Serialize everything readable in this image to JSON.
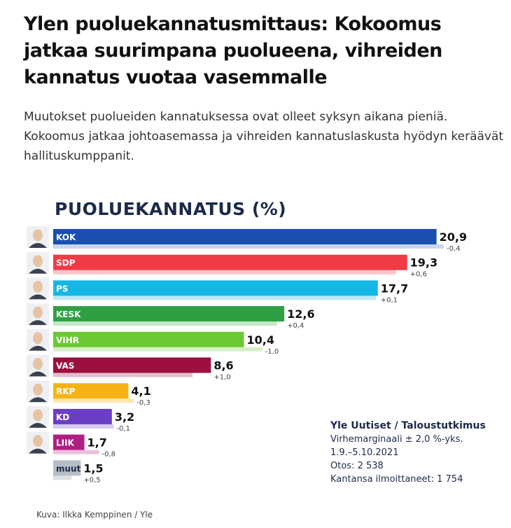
{
  "article": {
    "headline": "Ylen puoluekannatusmittaus: Kokoomus jatkaa suurimpana puolueena, vihreiden kannatus vuotaa vasemmalle",
    "lead": "Muutokset puolueiden kannatuksessa ovat olleet syksyn aikana pieniä. Kokoomus jatkaa johtoasemassa ja vihreiden kannatuslaskusta hyödyn keräävät hallituskumppanit.",
    "credit": "Kuva: Ilkka Kemppinen / Yle"
  },
  "source": {
    "title": "Yle Uutiset / Taloustutkimus",
    "lines": [
      "Virhemarginaali ± 2,0 %-yks.",
      "1.9.–5.10.2021",
      "Otos: 2 538",
      "Kantansa ilmoittaneet: 1 754"
    ]
  },
  "chart_data": {
    "type": "bar",
    "orientation": "horizontal",
    "title": "PUOLUEKANNATUS (%)",
    "categories": [
      "KOK",
      "SDP",
      "PS",
      "KESK",
      "VIHR",
      "VAS",
      "RKP",
      "KD",
      "LIIK",
      "muut"
    ],
    "values": [
      20.9,
      19.3,
      17.7,
      12.6,
      10.4,
      8.6,
      4.1,
      3.2,
      1.7,
      1.5
    ],
    "value_labels": [
      "20,9",
      "19,3",
      "17,7",
      "12,6",
      "10,4",
      "8,6",
      "4,1",
      "3,2",
      "1,7",
      "1,5"
    ],
    "changes": [
      -0.4,
      0.6,
      0.1,
      0.4,
      -1.0,
      1.0,
      -0.3,
      -0.1,
      -0.8,
      0.5
    ],
    "change_labels": [
      "-0,4",
      "+0,6",
      "+0,1",
      "+0,4",
      "-1,0",
      "+1,0",
      "-0,3",
      "-0,1",
      "-0,8",
      "+0,5"
    ],
    "colors": [
      "#1a4fb0",
      "#f03a45",
      "#14b8e6",
      "#2ea043",
      "#6cc933",
      "#9c0f3f",
      "#f5b315",
      "#6a3fc4",
      "#b01e82",
      "#b8bec6"
    ],
    "previous_colors": [
      "#c9d6ef",
      "#f7c6c9",
      "#bde8f6",
      "#c6e6c8",
      "#d7efc6",
      "#e3bfcb",
      "#fbe6b3",
      "#d6cbef",
      "#ebc1dd",
      "#dde0e4"
    ],
    "label_text_colors": [
      "#ffffff",
      "#ffffff",
      "#ffffff",
      "#ffffff",
      "#ffffff",
      "#ffffff",
      "#ffffff",
      "#ffffff",
      "#ffffff",
      "#1c2a4a"
    ],
    "avatar_icons": [
      "person-avatar-icon",
      "person-avatar-icon",
      "person-avatar-icon",
      "person-avatar-icon",
      "person-avatar-icon",
      "person-avatar-icon",
      "person-avatar-icon",
      "person-avatar-icon",
      "person-avatar-icon",
      ""
    ],
    "xlim": [
      0,
      21
    ],
    "grid": false,
    "legend": "none"
  }
}
